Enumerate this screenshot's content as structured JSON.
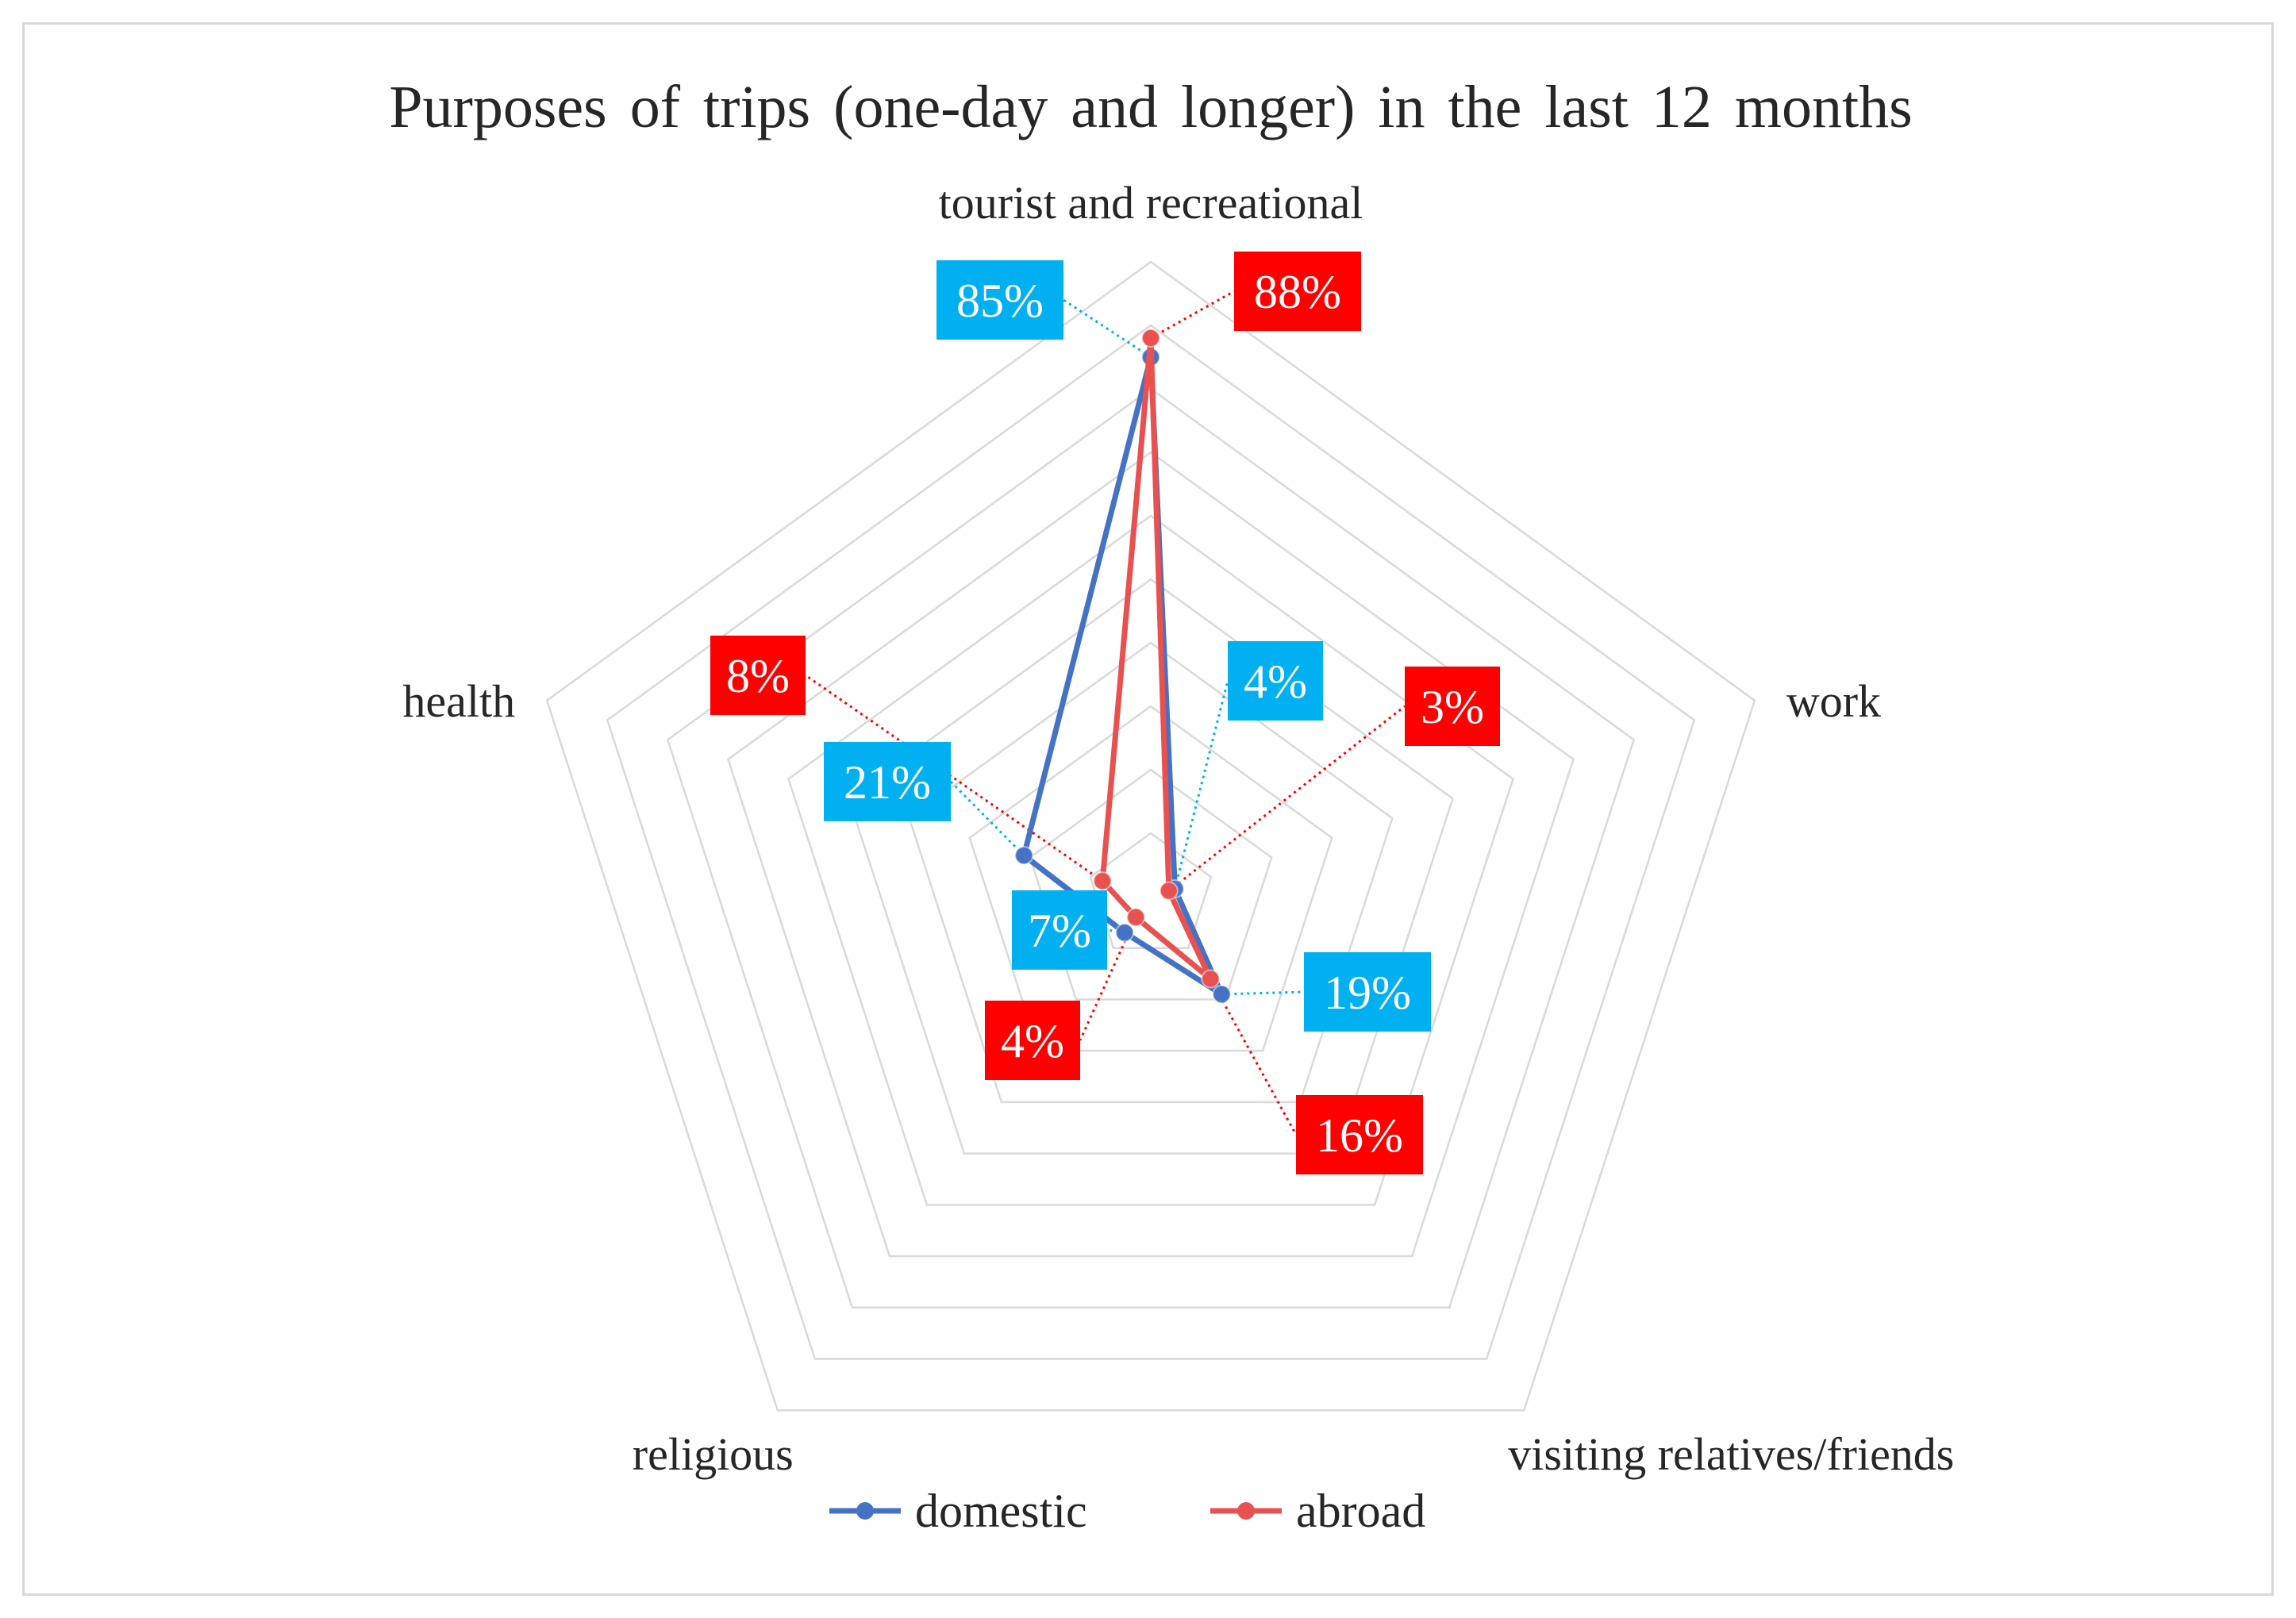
{
  "chart_data": {
    "type": "radar",
    "title": "Purposes of trips (one-day and longer) in the last 12 months",
    "categories": [
      "tourist and recreational",
      "work",
      "visiting relatives/friends",
      "religious",
      "health"
    ],
    "series": [
      {
        "name": "domestic",
        "values": [
          85,
          4,
          19,
          7,
          21
        ],
        "labels": [
          "85%",
          "4%",
          "19%",
          "7%",
          "21%"
        ],
        "color": "#4472C4",
        "label_color": "#00B0F0"
      },
      {
        "name": "abroad",
        "values": [
          88,
          3,
          16,
          4,
          8
        ],
        "labels": [
          "88%",
          "3%",
          "16%",
          "4%",
          "8%"
        ],
        "color": "#E8514F",
        "label_color": "#FF0000"
      }
    ],
    "rlim": [
      0,
      100
    ],
    "gridlines": 10,
    "grid": true,
    "legend_position": "bottom"
  }
}
